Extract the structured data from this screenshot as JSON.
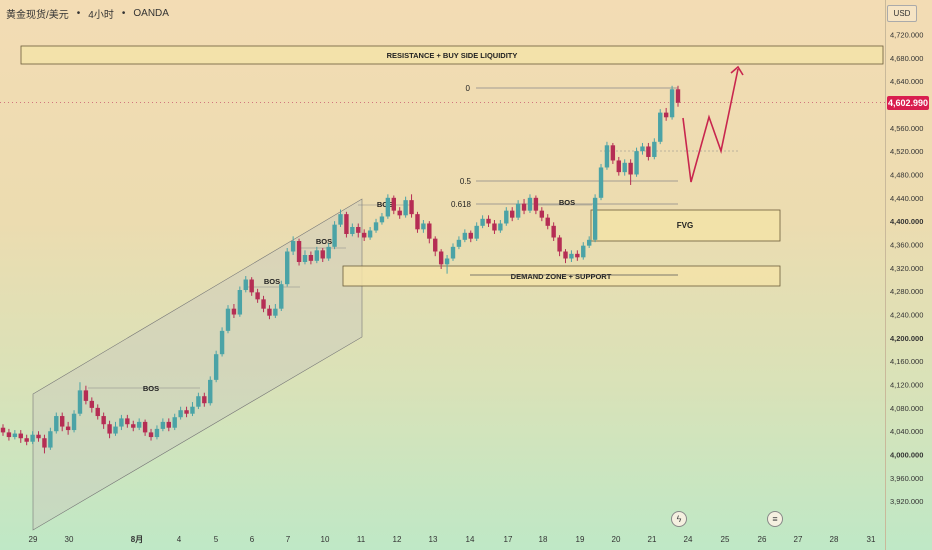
{
  "header": {
    "symbol": "黄金现货/美元",
    "interval": "4小时",
    "source": "OANDA"
  },
  "currency": "USD",
  "last_price_label": "4,602.990",
  "colors": {
    "up": "#4ba3a6",
    "down": "#b52d54",
    "zone_fill": "#f3e3a8",
    "zone_border": "#6b5c3a",
    "arrow": "#c8264e",
    "channel_fill": "#c9c9bf"
  },
  "chart_data": {
    "type": "candlestick",
    "x_tick_labels": [
      "29",
      "30",
      "8月",
      "4",
      "5",
      "6",
      "7",
      "10",
      "11",
      "12",
      "13",
      "14",
      "17",
      "18",
      "19",
      "20",
      "21",
      "24",
      "25",
      "26",
      "27",
      "28",
      "31"
    ],
    "y_tick_labels": [
      "3,920.000",
      "3,960.000",
      "4,000.000",
      "4,040.000",
      "4,080.000",
      "4,120.000",
      "4,160.000",
      "4,200.000",
      "4,240.000",
      "4,280.000",
      "4,320.000",
      "4,360.000",
      "4,400.000",
      "4,440.000",
      "4,480.000",
      "4,520.000",
      "4,560.000",
      "4,600.000",
      "4,640.000",
      "4,680.000",
      "4,720.000"
    ],
    "y_ticks": [
      3920,
      3960,
      4000,
      4040,
      4080,
      4120,
      4160,
      4200,
      4240,
      4280,
      4320,
      4360,
      4400,
      4440,
      4480,
      4520,
      4560,
      4600,
      4640,
      4680,
      4720
    ],
    "ylim": [
      3905,
      4755
    ],
    "last_price": 4602.99,
    "candles": [
      [
        4046,
        4038,
        4052,
        4032
      ],
      [
        4038,
        4030,
        4044,
        4024
      ],
      [
        4030,
        4036,
        4042,
        4026
      ],
      [
        4036,
        4028,
        4042,
        4020
      ],
      [
        4028,
        4022,
        4034,
        4016
      ],
      [
        4022,
        4034,
        4040,
        4018
      ],
      [
        4034,
        4028,
        4040,
        4022
      ],
      [
        4028,
        4012,
        4034,
        4002
      ],
      [
        4012,
        4040,
        4046,
        4008
      ],
      [
        4040,
        4066,
        4072,
        4036
      ],
      [
        4066,
        4048,
        4072,
        4040
      ],
      [
        4048,
        4042,
        4056,
        4034
      ],
      [
        4042,
        4070,
        4076,
        4038
      ],
      [
        4070,
        4110,
        4124,
        4066
      ],
      [
        4110,
        4092,
        4118,
        4086
      ],
      [
        4092,
        4080,
        4098,
        4072
      ],
      [
        4080,
        4066,
        4086,
        4060
      ],
      [
        4066,
        4052,
        4072,
        4044
      ],
      [
        4052,
        4036,
        4058,
        4028
      ],
      [
        4036,
        4048,
        4056,
        4032
      ],
      [
        4048,
        4062,
        4068,
        4042
      ],
      [
        4062,
        4052,
        4068,
        4046
      ],
      [
        4052,
        4046,
        4058,
        4040
      ],
      [
        4046,
        4056,
        4062,
        4042
      ],
      [
        4056,
        4038,
        4060,
        4032
      ],
      [
        4038,
        4030,
        4044,
        4024
      ],
      [
        4030,
        4044,
        4050,
        4026
      ],
      [
        4044,
        4056,
        4062,
        4040
      ],
      [
        4056,
        4046,
        4062,
        4040
      ],
      [
        4046,
        4064,
        4070,
        4042
      ],
      [
        4064,
        4076,
        4082,
        4060
      ],
      [
        4076,
        4070,
        4082,
        4064
      ],
      [
        4070,
        4082,
        4090,
        4066
      ],
      [
        4082,
        4100,
        4106,
        4078
      ],
      [
        4100,
        4088,
        4106,
        4082
      ],
      [
        4088,
        4128,
        4134,
        4084
      ],
      [
        4128,
        4172,
        4178,
        4124
      ],
      [
        4172,
        4212,
        4218,
        4168
      ],
      [
        4212,
        4250,
        4256,
        4208
      ],
      [
        4250,
        4240,
        4258,
        4234
      ],
      [
        4240,
        4282,
        4288,
        4236
      ],
      [
        4282,
        4300,
        4306,
        4278
      ],
      [
        4300,
        4278,
        4304,
        4272
      ],
      [
        4278,
        4266,
        4284,
        4260
      ],
      [
        4266,
        4250,
        4272,
        4244
      ],
      [
        4250,
        4238,
        4256,
        4232
      ],
      [
        4238,
        4250,
        4258,
        4234
      ],
      [
        4250,
        4292,
        4298,
        4246
      ],
      [
        4292,
        4348,
        4354,
        4288
      ],
      [
        4348,
        4366,
        4374,
        4342
      ],
      [
        4366,
        4330,
        4370,
        4324
      ],
      [
        4330,
        4342,
        4350,
        4326
      ],
      [
        4342,
        4332,
        4348,
        4326
      ],
      [
        4332,
        4350,
        4356,
        4328
      ],
      [
        4350,
        4336,
        4354,
        4330
      ],
      [
        4336,
        4356,
        4362,
        4332
      ],
      [
        4356,
        4394,
        4400,
        4352
      ],
      [
        4394,
        4412,
        4420,
        4390
      ],
      [
        4412,
        4378,
        4416,
        4372
      ],
      [
        4378,
        4390,
        4396,
        4374
      ],
      [
        4390,
        4380,
        4396,
        4372
      ],
      [
        4380,
        4372,
        4386,
        4366
      ],
      [
        4372,
        4384,
        4390,
        4368
      ],
      [
        4384,
        4398,
        4404,
        4380
      ],
      [
        4398,
        4408,
        4414,
        4394
      ],
      [
        4408,
        4440,
        4446,
        4404
      ],
      [
        4440,
        4418,
        4444,
        4412
      ],
      [
        4418,
        4410,
        4424,
        4404
      ],
      [
        4410,
        4436,
        4442,
        4406
      ],
      [
        4436,
        4412,
        4446,
        4406
      ],
      [
        4412,
        4386,
        4416,
        4380
      ],
      [
        4386,
        4396,
        4402,
        4380
      ],
      [
        4396,
        4370,
        4400,
        4362
      ],
      [
        4370,
        4348,
        4374,
        4340
      ],
      [
        4348,
        4326,
        4352,
        4318
      ],
      [
        4326,
        4336,
        4342,
        4310
      ],
      [
        4336,
        4356,
        4362,
        4332
      ],
      [
        4356,
        4368,
        4374,
        4352
      ],
      [
        4368,
        4380,
        4386,
        4364
      ],
      [
        4380,
        4370,
        4384,
        4364
      ],
      [
        4370,
        4392,
        4398,
        4366
      ],
      [
        4392,
        4404,
        4410,
        4388
      ],
      [
        4404,
        4396,
        4410,
        4390
      ],
      [
        4396,
        4384,
        4402,
        4378
      ],
      [
        4384,
        4396,
        4402,
        4380
      ],
      [
        4396,
        4418,
        4424,
        4392
      ],
      [
        4418,
        4406,
        4424,
        4400
      ],
      [
        4406,
        4430,
        4436,
        4402
      ],
      [
        4430,
        4418,
        4438,
        4412
      ],
      [
        4418,
        4440,
        4446,
        4414
      ],
      [
        4440,
        4418,
        4444,
        4412
      ],
      [
        4418,
        4406,
        4424,
        4400
      ],
      [
        4406,
        4392,
        4412,
        4386
      ],
      [
        4392,
        4372,
        4398,
        4366
      ],
      [
        4372,
        4348,
        4376,
        4340
      ],
      [
        4348,
        4336,
        4352,
        4328
      ],
      [
        4336,
        4344,
        4350,
        4330
      ],
      [
        4344,
        4338,
        4350,
        4332
      ],
      [
        4338,
        4358,
        4364,
        4334
      ],
      [
        4358,
        4368,
        4374,
        4354
      ],
      [
        4368,
        4440,
        4446,
        4364
      ],
      [
        4440,
        4492,
        4498,
        4436
      ],
      [
        4492,
        4530,
        4536,
        4488
      ],
      [
        4530,
        4504,
        4534,
        4498
      ],
      [
        4504,
        4484,
        4510,
        4478
      ],
      [
        4484,
        4500,
        4506,
        4478
      ],
      [
        4500,
        4480,
        4506,
        4462
      ],
      [
        4480,
        4520,
        4526,
        4476
      ],
      [
        4520,
        4528,
        4534,
        4514
      ],
      [
        4528,
        4510,
        4534,
        4504
      ],
      [
        4510,
        4536,
        4542,
        4506
      ],
      [
        4536,
        4586,
        4592,
        4532
      ],
      [
        4586,
        4578,
        4594,
        4572
      ],
      [
        4578,
        4626,
        4632,
        4574
      ],
      [
        4626,
        4602.99,
        4632,
        4596
      ]
    ],
    "annotations": {
      "zone_top_label": "RESISTANCE + BUY SIDE LIQUIDITY",
      "fvg_label": "FVG",
      "demand_label": "DEMAND ZONE + SUPPORT",
      "bos_label": "BOS",
      "fib_0": "0",
      "fib_05": "0.5",
      "fib_0618": "0.618"
    }
  }
}
